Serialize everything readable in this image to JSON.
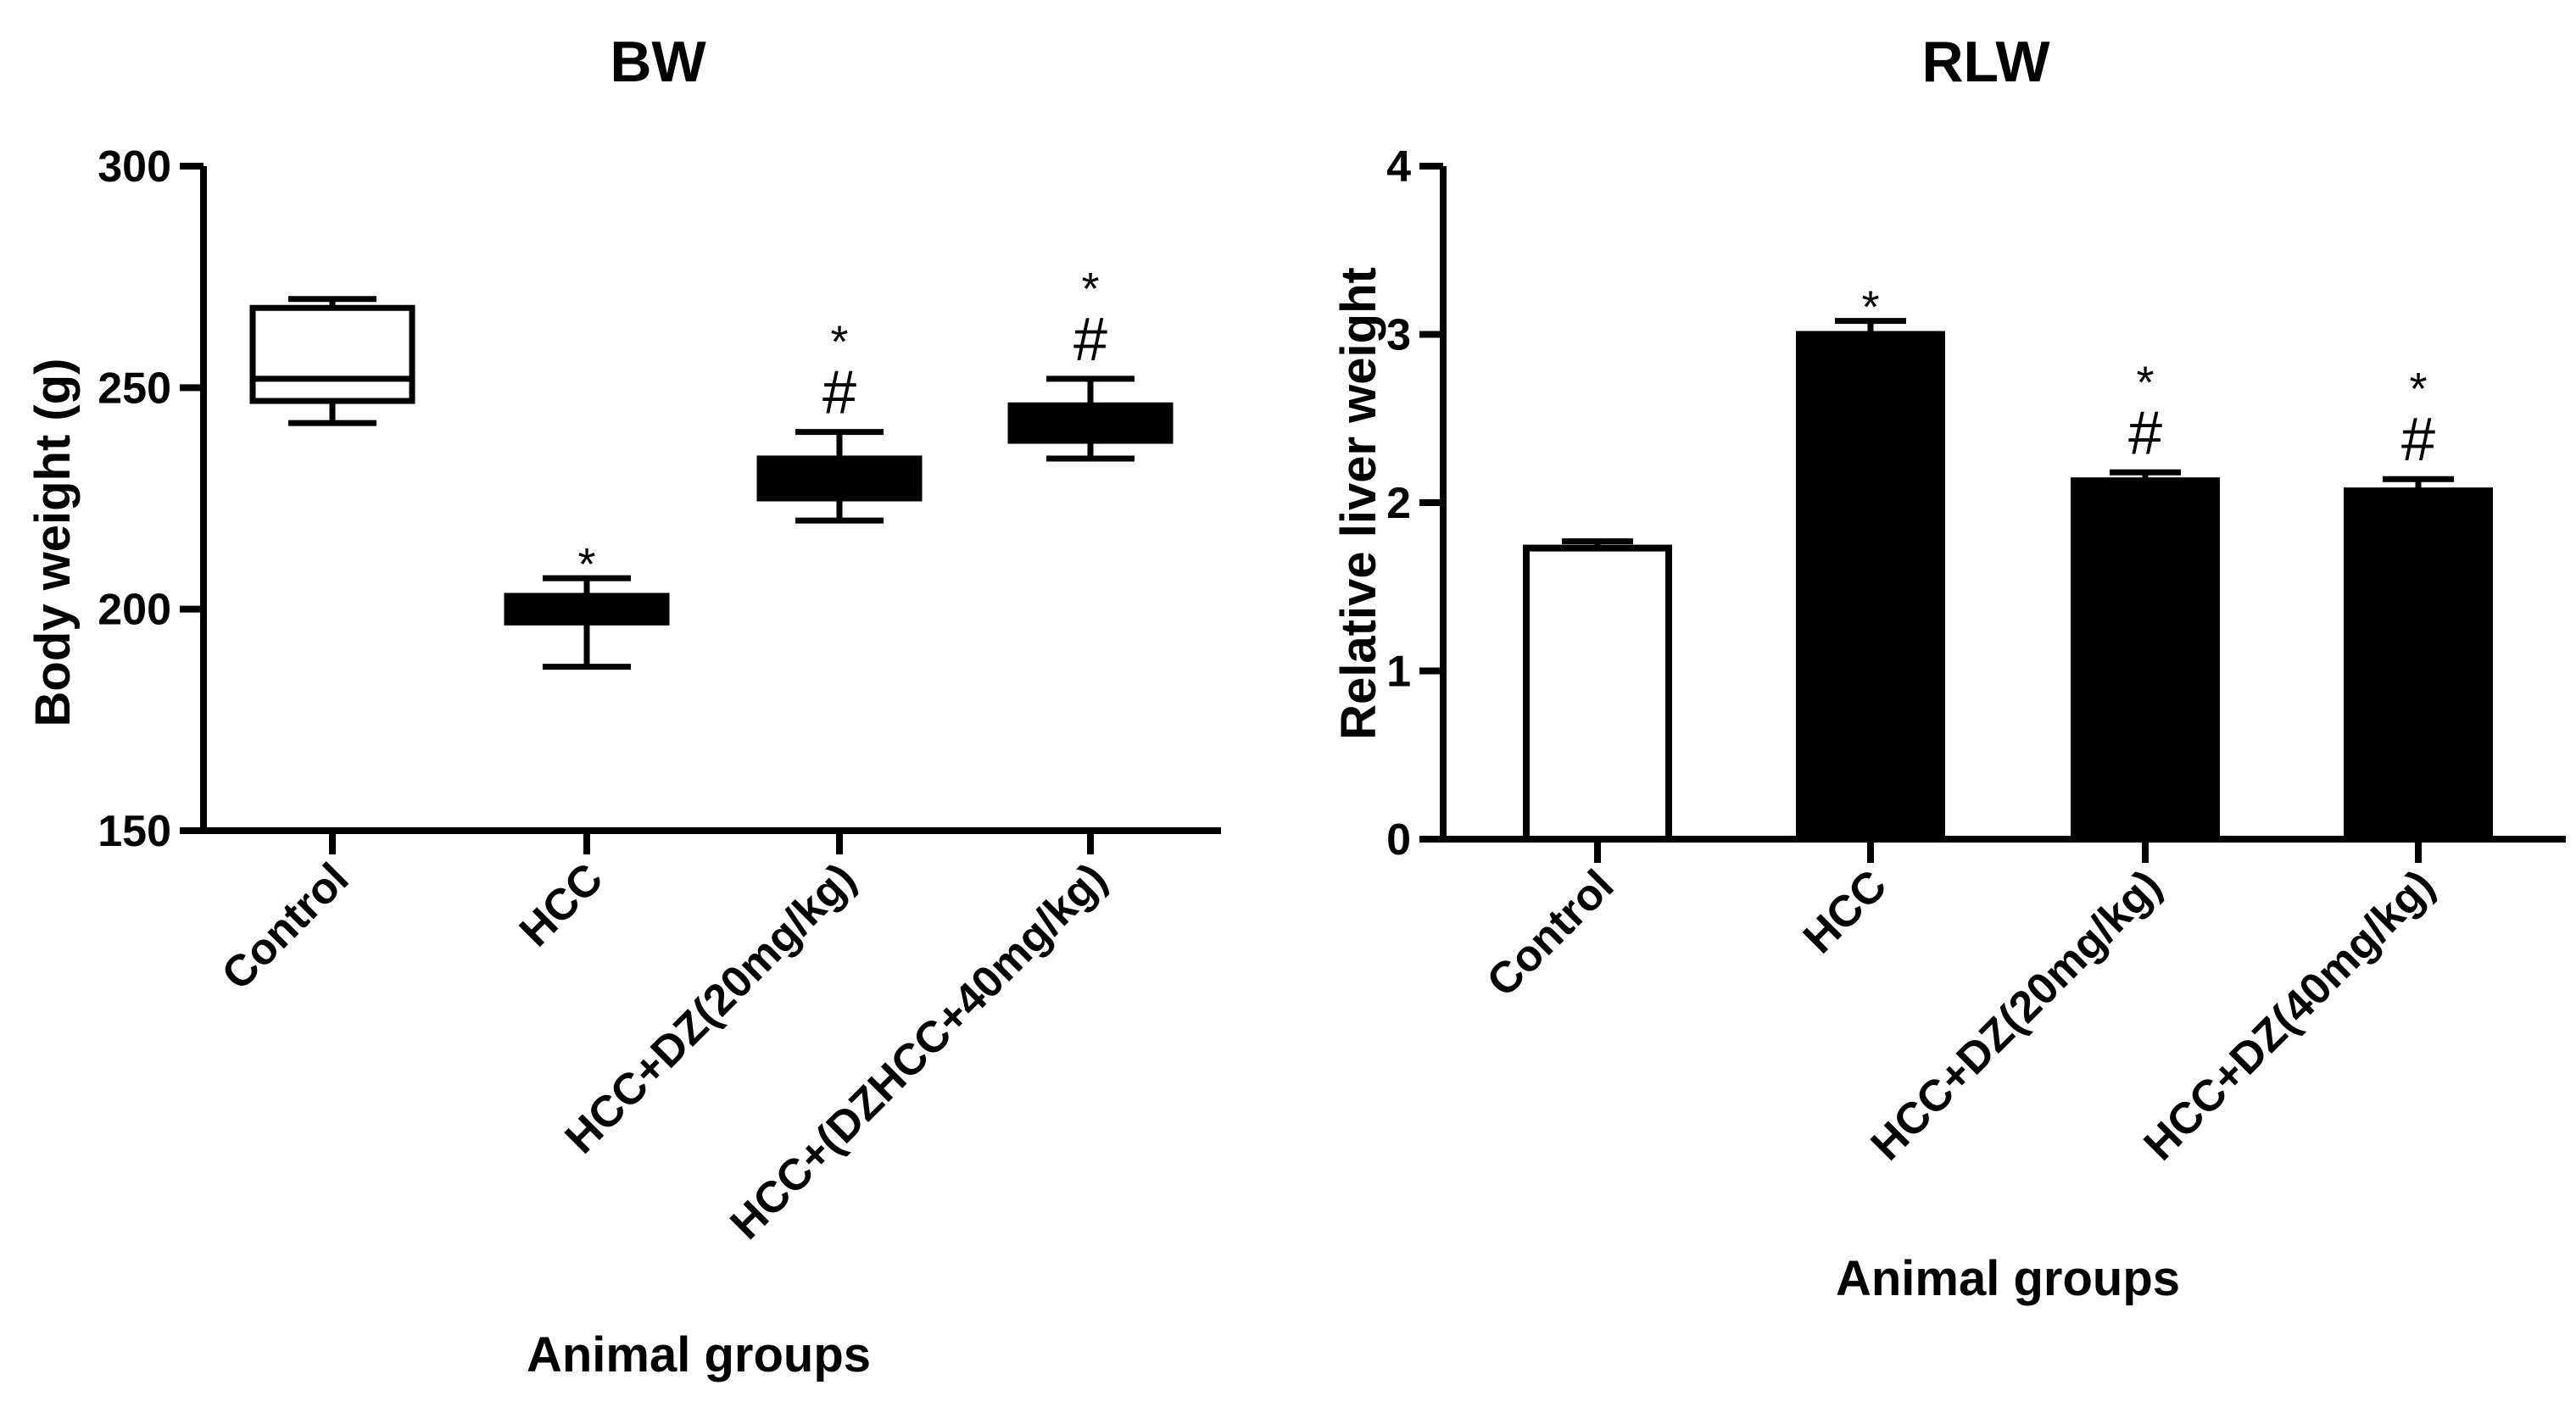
{
  "chart_data": [
    {
      "type": "box",
      "title": "BW",
      "xlabel": "Animal groups",
      "ylabel": "Body weight (g)",
      "ylim": [
        150,
        300
      ],
      "yticks": [
        150,
        200,
        250,
        300
      ],
      "categories": [
        "Control",
        "HCC",
        "HCC+DZ(20mg/kg)",
        "HCC+(DZHCC+40mg/kg)"
      ],
      "boxes": [
        {
          "min": 242,
          "q1": 247,
          "median": 252,
          "q3": 268,
          "max": 270,
          "fill": "#ffffff"
        },
        {
          "min": 187,
          "q1": 197,
          "median": 200,
          "q3": 203,
          "max": 207,
          "fill": "#000000"
        },
        {
          "min": 220,
          "q1": 225,
          "median": 229,
          "q3": 234,
          "max": 240,
          "fill": "#000000"
        },
        {
          "min": 234,
          "q1": 238,
          "median": 242,
          "q3": 246,
          "max": 252,
          "fill": "#000000"
        }
      ],
      "annotations": [
        {
          "group": 1,
          "labels": [
            "*"
          ]
        },
        {
          "group": 2,
          "labels": [
            "*",
            "#"
          ]
        },
        {
          "group": 3,
          "labels": [
            "*",
            "#"
          ]
        }
      ]
    },
    {
      "type": "bar",
      "title": "RLW",
      "xlabel": "Animal groups",
      "ylabel": "Relative liver weight",
      "ylim": [
        0,
        4
      ],
      "yticks": [
        0,
        1,
        2,
        3,
        4
      ],
      "categories": [
        "Control",
        "HCC",
        "HCC+DZ(20mg/kg)",
        "HCC+DZ(40mg/kg)"
      ],
      "values": [
        1.73,
        3.0,
        2.13,
        2.07
      ],
      "errors": [
        0.04,
        0.08,
        0.05,
        0.07
      ],
      "fills": [
        "#ffffff",
        "#000000",
        "#000000",
        "#000000"
      ],
      "annotations": [
        {
          "group": 1,
          "labels": [
            "*"
          ]
        },
        {
          "group": 2,
          "labels": [
            "*",
            "#"
          ]
        },
        {
          "group": 3,
          "labels": [
            "*",
            "#"
          ]
        }
      ]
    }
  ]
}
